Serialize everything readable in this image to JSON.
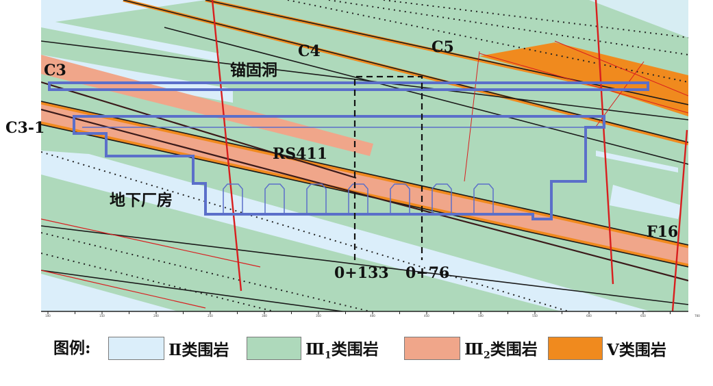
{
  "colors": {
    "class_II": "#dbeefa",
    "class_III1": "#aed9bb",
    "class_III2": "#f0a68a",
    "class_V": "#f08a1e",
    "fault_red": "#d81e1e",
    "structure_blue": "#5b6fc9"
  },
  "labels": {
    "c3": "C3",
    "c3_1": "C3-1",
    "c4": "C4",
    "c5": "C5",
    "anchor_tunnel": "锚固洞",
    "rs411": "RS411",
    "powerhouse": "地下厂房",
    "f16": "F16",
    "station_a": "0+133",
    "station_b": "0+76"
  },
  "axis_ticks": [
    "100",
    "150",
    "200",
    "250",
    "300",
    "350",
    "400",
    "450",
    "500",
    "550",
    "600",
    "650",
    "700",
    "750",
    "800",
    "850"
  ],
  "legend": {
    "title": "图例:",
    "items": [
      {
        "prefix": "Ⅱ",
        "sub": "",
        "text": "类围岩",
        "color_key": "class_II"
      },
      {
        "prefix": "Ⅲ",
        "sub": "1",
        "text": "类围岩",
        "color_key": "class_III1"
      },
      {
        "prefix": "Ⅲ",
        "sub": "2",
        "text": "类围岩",
        "color_key": "class_III2"
      },
      {
        "prefix": "Ⅴ",
        "sub": "",
        "text": "类围岩",
        "color_key": "class_V"
      }
    ]
  }
}
